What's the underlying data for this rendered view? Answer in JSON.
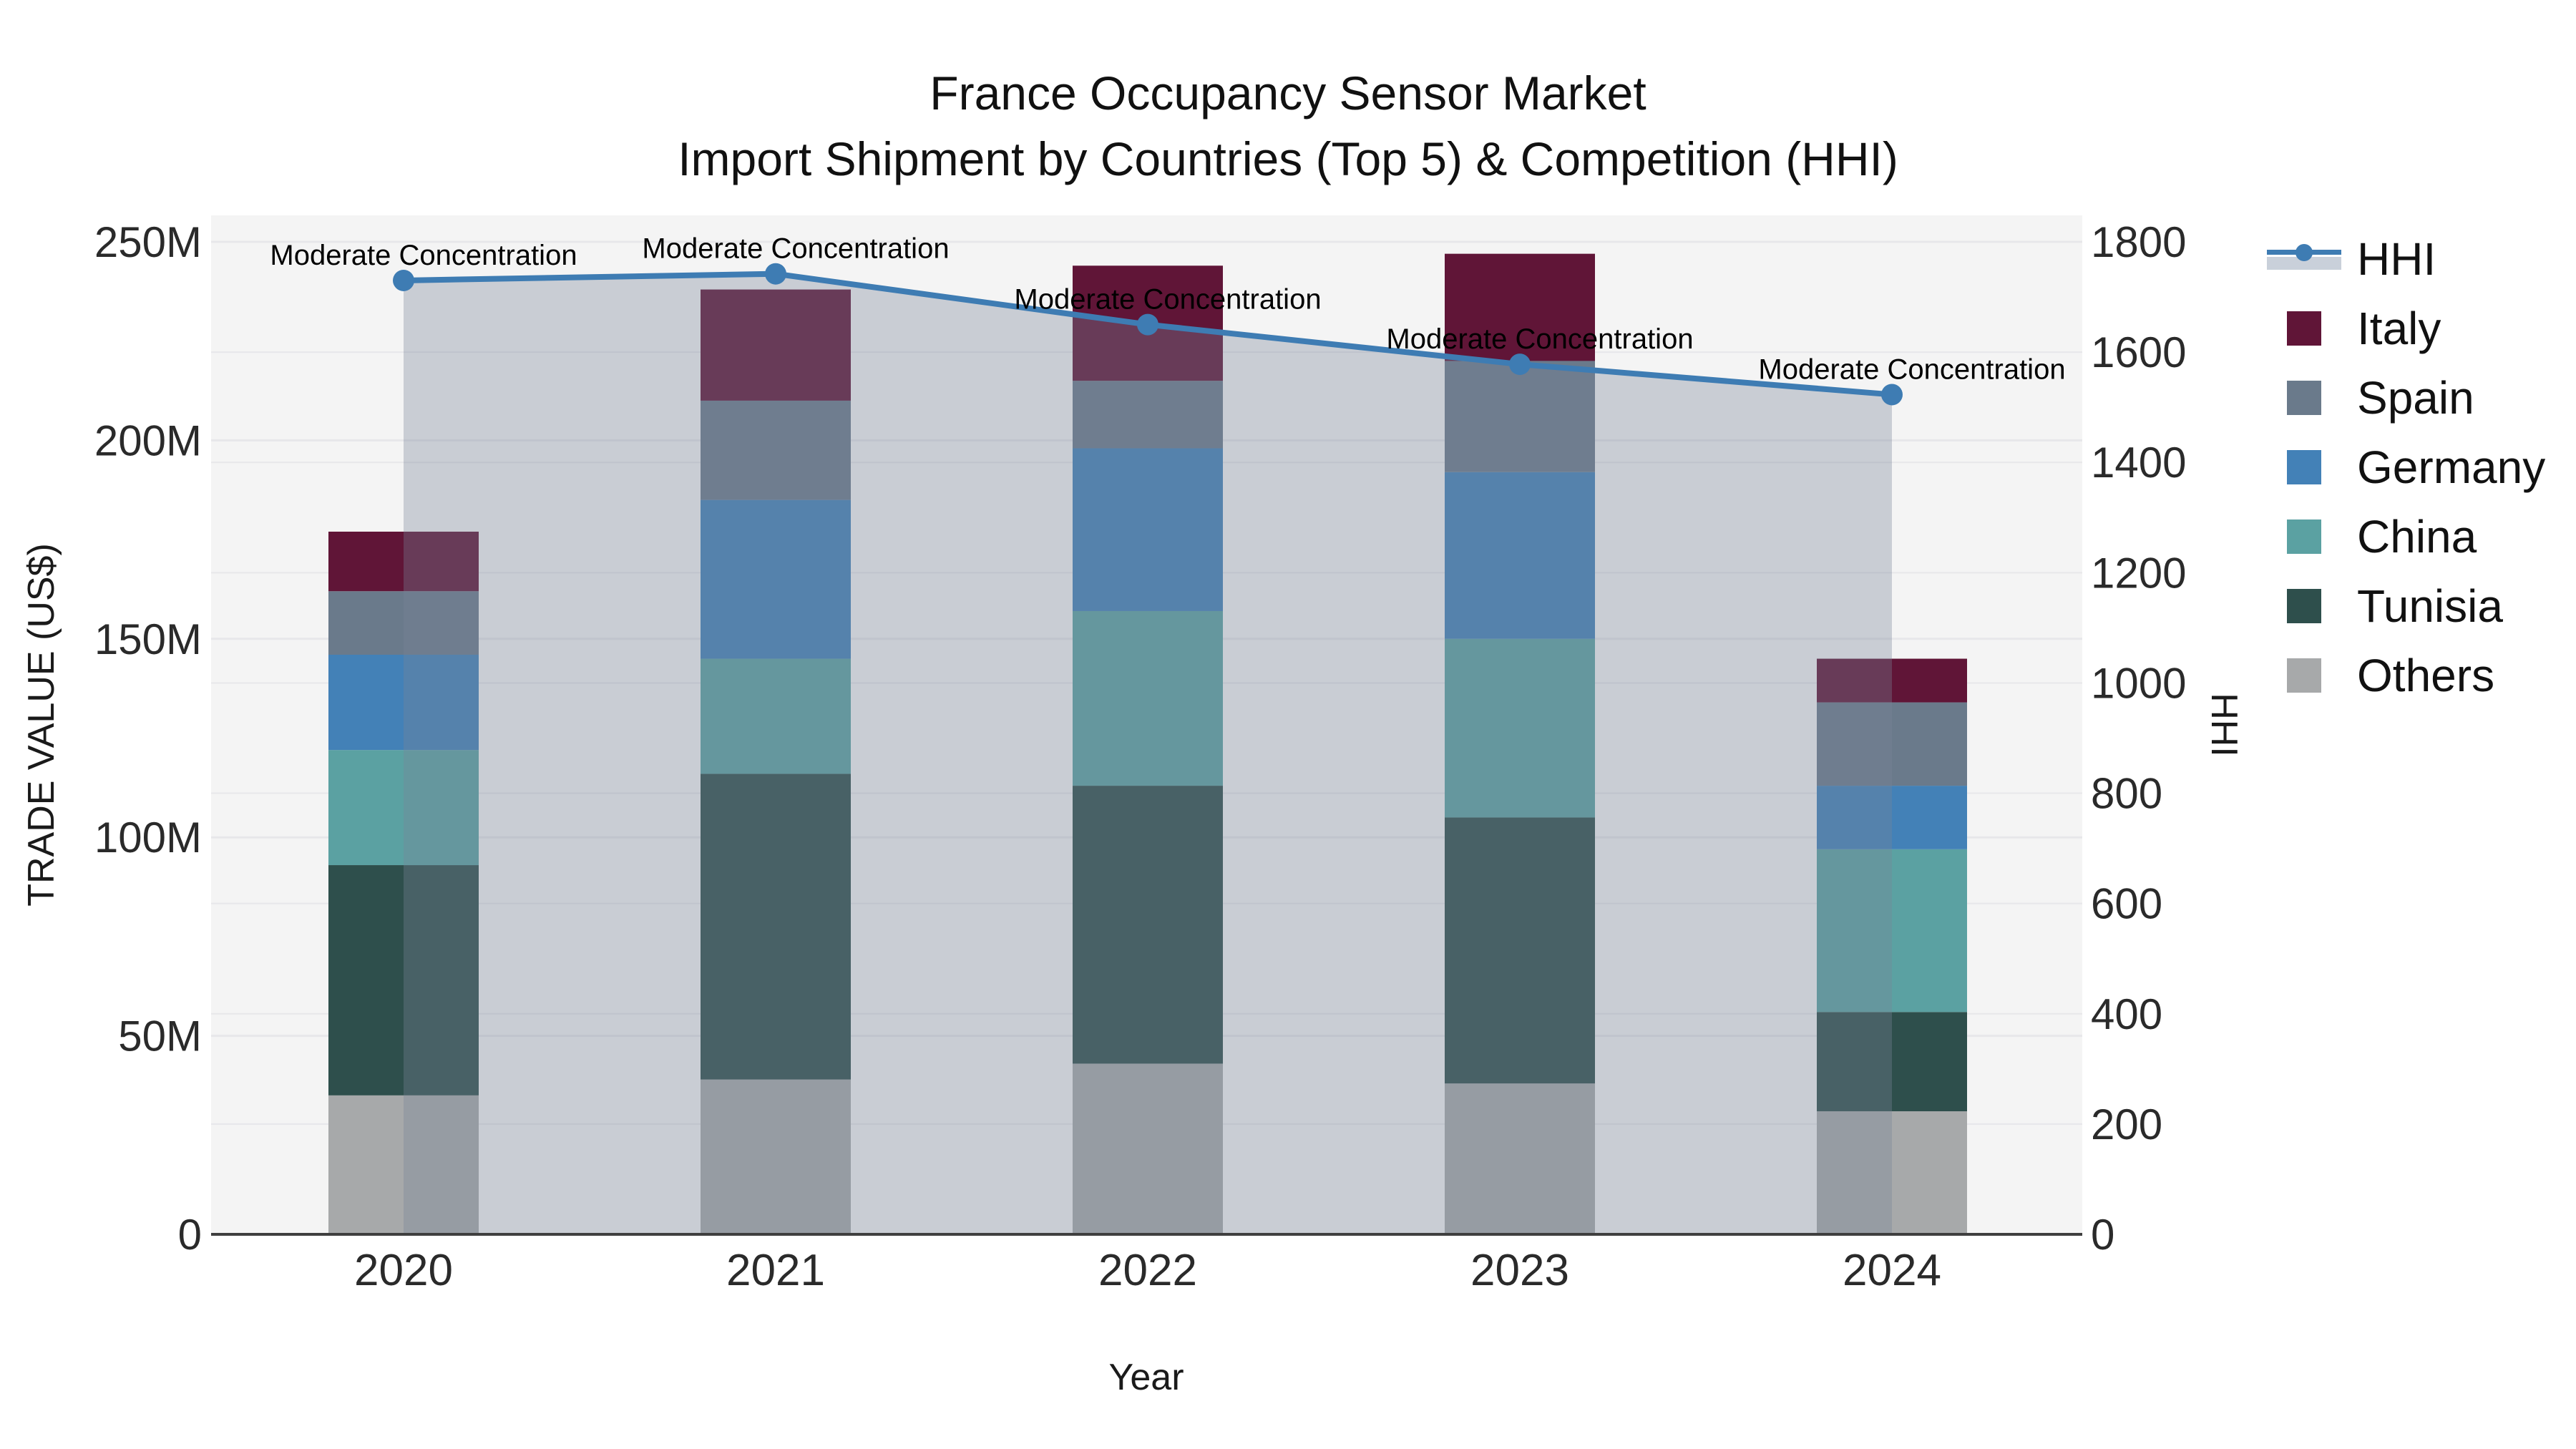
{
  "header": {
    "title_line1": "France Occupancy Sensor Market",
    "title_line2": "Import Shipment by Countries (Top 5) & Competition (HHI)"
  },
  "chart_data": {
    "type": "stacked-bar+line",
    "title": "France Occupancy Sensor Market — Import Shipment by Countries (Top 5) & Competition (HHI)",
    "categories": [
      "2020",
      "2021",
      "2022",
      "2023",
      "2024"
    ],
    "values_unit": "USD millions",
    "stack_order_note": "series listed bottom-up in each stacked bar",
    "series": [
      {
        "name": "Others",
        "color": "#a7a9aa",
        "values": [
          35,
          39,
          43,
          38,
          31
        ]
      },
      {
        "name": "Tunisia",
        "color": "#2e4f4c",
        "values": [
          58,
          77,
          70,
          67,
          25
        ]
      },
      {
        "name": "China",
        "color": "#5ba1a2",
        "values": [
          29,
          29,
          44,
          45,
          41
        ]
      },
      {
        "name": "Germany",
        "color": "#4381b7",
        "values": [
          24,
          40,
          41,
          42,
          16
        ]
      },
      {
        "name": "Spain",
        "color": "#6a7a8b",
        "values": [
          16,
          25,
          17,
          28,
          21
        ]
      },
      {
        "name": "Italy",
        "color": "#601537",
        "values": [
          15,
          28,
          29,
          27,
          11
        ]
      }
    ],
    "hhi_series": {
      "name": "HHI",
      "line_color": "#3e7cb3",
      "fill_color": "rgba(120,132,152,0.35)",
      "values": [
        1730,
        1742,
        1650,
        1578,
        1523
      ],
      "annotation_text": "Moderate Concentration"
    },
    "axes": {
      "left": {
        "title": "TRADE VALUE (US$)",
        "tick_labels": [
          "0",
          "50M",
          "100M",
          "150M",
          "200M",
          "250M"
        ],
        "tick_values": [
          0,
          50,
          100,
          150,
          200,
          250
        ],
        "range_millions": [
          0,
          250
        ]
      },
      "right": {
        "title": "HHI",
        "tick_labels": [
          "0",
          "200",
          "400",
          "600",
          "800",
          "1000",
          "1200",
          "1400",
          "1600",
          "1800"
        ],
        "tick_values": [
          0,
          200,
          400,
          600,
          800,
          1000,
          1200,
          1400,
          1600,
          1800
        ],
        "range": [
          0,
          1800
        ]
      },
      "x": {
        "title": "Year"
      }
    },
    "legend": {
      "position": "right",
      "entries": [
        "HHI",
        "Italy",
        "Spain",
        "Germany",
        "China",
        "Tunisia",
        "Others"
      ]
    },
    "style": {
      "plot_bg": "#f4f4f4",
      "grid_color": "#e7e7ea",
      "axis_line_color": "#3f3f3f",
      "text_color": "#2a2a2a"
    }
  }
}
